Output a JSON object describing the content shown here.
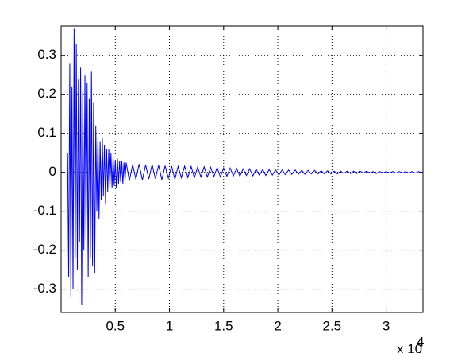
{
  "chart_data": {
    "type": "line",
    "x": [
      0.06,
      0.07,
      0.08,
      0.09,
      0.1,
      0.11,
      0.12,
      0.13,
      0.14,
      0.15,
      0.16,
      0.17,
      0.18,
      0.19,
      0.2,
      0.21,
      0.22,
      0.23,
      0.24,
      0.25,
      0.26,
      0.27,
      0.28,
      0.29,
      0.3,
      0.31,
      0.32,
      0.33,
      0.34,
      0.35,
      0.36,
      0.37,
      0.38,
      0.39,
      0.4,
      0.41,
      0.42,
      0.43,
      0.44,
      0.45,
      0.46,
      0.47,
      0.48,
      0.49,
      0.5,
      0.51,
      0.52,
      0.53,
      0.54,
      0.55,
      0.56,
      0.57,
      0.58,
      0.59,
      0.6,
      0.63,
      0.66,
      0.69,
      0.72,
      0.75,
      0.78,
      0.81,
      0.84,
      0.87,
      0.9,
      0.93,
      0.96,
      0.99,
      1.02,
      1.05,
      1.08,
      1.11,
      1.14,
      1.17,
      1.2,
      1.23,
      1.26,
      1.29,
      1.32,
      1.35,
      1.38,
      1.41,
      1.44,
      1.47,
      1.5,
      1.53,
      1.56,
      1.59,
      1.62,
      1.65,
      1.68,
      1.71,
      1.74,
      1.77,
      1.8,
      1.83,
      1.86,
      1.89,
      1.92,
      1.95,
      1.98,
      2.01,
      2.04,
      2.07,
      2.1,
      2.13,
      2.16,
      2.19,
      2.22,
      2.25,
      2.28,
      2.31,
      2.34,
      2.37,
      2.4,
      2.43,
      2.46,
      2.49,
      2.52,
      2.55,
      2.58,
      2.61,
      2.64,
      2.67,
      2.7,
      2.73,
      2.76,
      2.79,
      2.82,
      2.85,
      2.88,
      2.91,
      2.94,
      2.97,
      3.0,
      3.03,
      3.06,
      3.09,
      3.12,
      3.15,
      3.18,
      3.21,
      3.24,
      3.27,
      3.3,
      3.33
    ],
    "series": [
      {
        "color": "#0000ff",
        "values": [
          0.05,
          -0.27,
          0.28,
          -0.32,
          0.22,
          -0.3,
          0.37,
          -0.22,
          0.33,
          -0.25,
          0.24,
          -0.18,
          0.27,
          -0.34,
          0.21,
          -0.2,
          0.25,
          -0.17,
          0.23,
          -0.27,
          0.19,
          -0.22,
          0.26,
          -0.24,
          0.18,
          -0.26,
          0.12,
          -0.1,
          0.09,
          -0.12,
          0.08,
          -0.07,
          0.09,
          -0.06,
          0.07,
          -0.08,
          0.06,
          -0.05,
          0.06,
          -0.04,
          0.05,
          -0.04,
          0.04,
          -0.035,
          0.03,
          -0.04,
          0.035,
          -0.03,
          0.03,
          -0.025,
          0.03,
          -0.03,
          0.025,
          -0.02,
          0.025,
          -0.022,
          0.02,
          -0.018,
          0.021,
          -0.02,
          0.019,
          -0.017,
          0.02,
          -0.016,
          0.018,
          -0.019,
          0.017,
          -0.015,
          0.016,
          -0.018,
          0.015,
          -0.014,
          0.016,
          -0.013,
          0.015,
          -0.014,
          0.013,
          -0.012,
          0.014,
          -0.012,
          0.013,
          -0.011,
          0.012,
          -0.012,
          0.011,
          -0.01,
          0.011,
          -0.009,
          0.01,
          -0.01,
          0.009,
          -0.008,
          0.009,
          -0.009,
          0.008,
          -0.008,
          0.007,
          -0.008,
          0.007,
          -0.007,
          0.006,
          -0.007,
          0.006,
          -0.006,
          0.006,
          -0.005,
          0.006,
          -0.005,
          0.005,
          -0.005,
          0.005,
          -0.004,
          0.005,
          -0.004,
          0.004,
          -0.004,
          0.004,
          -0.004,
          0.003,
          -0.004,
          0.003,
          -0.003,
          0.003,
          -0.003,
          0.003,
          -0.003,
          0.003,
          -0.002,
          0.003,
          -0.002,
          0.002,
          -0.003,
          0.002,
          -0.002,
          0.002,
          -0.002,
          0.002,
          -0.002,
          0.002,
          -0.002,
          0.002,
          -0.002,
          0.002,
          -0.002,
          0.002,
          -0.002
        ]
      }
    ],
    "xlim": [
      0,
      3.34
    ],
    "ylim": [
      -0.36,
      0.375
    ],
    "xticks": [
      0.5,
      1,
      1.5,
      2,
      2.5,
      3
    ],
    "yticks": [
      -0.3,
      -0.2,
      -0.1,
      0,
      0.1,
      0.2,
      0.3
    ],
    "x_multiplier": "x 10",
    "x_exponent": "4",
    "grid": true
  }
}
